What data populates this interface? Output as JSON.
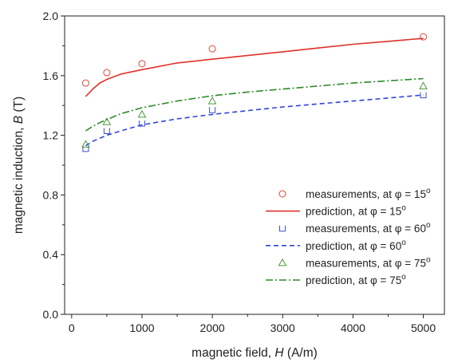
{
  "chart_data": {
    "type": "line",
    "title": "",
    "xlabel_prefix": "magnetic field, ",
    "xlabel_var": "H",
    "xlabel_suffix": " (A/m)",
    "ylabel_prefix": "magnetic induction, ",
    "ylabel_var": "B",
    "ylabel_suffix": " (T)",
    "xlim": [
      -100,
      5300
    ],
    "ylim": [
      0.0,
      2.0
    ],
    "x_ticks": [
      0,
      1000,
      2000,
      3000,
      4000,
      5000
    ],
    "x_tick_labels": [
      "0",
      "1000",
      "2000",
      "3000",
      "4000",
      "5000"
    ],
    "y_ticks": [
      0.0,
      0.4,
      0.8,
      1.2,
      1.6,
      2.0
    ],
    "y_tick_labels": [
      "0.0",
      "0.4",
      "0.8",
      "1.2",
      "1.6",
      "2.0"
    ],
    "grid": false,
    "legend_position": "lower-right",
    "series": [
      {
        "name": "measurements, at φ = 15",
        "name_sup": "o",
        "kind": "scatter",
        "marker": "circle",
        "color": "#e0443a",
        "x": [
          200,
          500,
          1000,
          2000,
          5000
        ],
        "y": [
          1.55,
          1.62,
          1.68,
          1.78,
          1.86
        ]
      },
      {
        "name": "prediction, at φ = 15",
        "name_sup": "o",
        "kind": "line",
        "dash": "solid",
        "color": "#e0302a",
        "x": [
          200,
          300,
          400,
          500,
          700,
          1000,
          1500,
          2000,
          2500,
          3000,
          3500,
          4000,
          4500,
          5000
        ],
        "y": [
          1.46,
          1.51,
          1.55,
          1.575,
          1.61,
          1.64,
          1.685,
          1.71,
          1.735,
          1.76,
          1.785,
          1.81,
          1.83,
          1.85
        ]
      },
      {
        "name": "measurements, at φ = 60",
        "name_sup": "o",
        "kind": "scatter",
        "marker": "square",
        "color": "#3a4fd0",
        "x": [
          200,
          500,
          1000,
          2000,
          5000
        ],
        "y": [
          1.11,
          1.23,
          1.28,
          1.37,
          1.47
        ]
      },
      {
        "name": "prediction, at φ = 60",
        "name_sup": "o",
        "kind": "line",
        "dash": "dashed",
        "color": "#2f45d8",
        "x": [
          200,
          300,
          400,
          500,
          700,
          1000,
          1500,
          2000,
          2500,
          3000,
          3500,
          4000,
          4500,
          5000
        ],
        "y": [
          1.13,
          1.16,
          1.18,
          1.2,
          1.23,
          1.27,
          1.31,
          1.34,
          1.365,
          1.39,
          1.41,
          1.43,
          1.45,
          1.47
        ]
      },
      {
        "name": "measurements, at φ = 75",
        "name_sup": "o",
        "kind": "scatter",
        "marker": "triangle",
        "color": "#4a9a3c",
        "x": [
          200,
          500,
          1000,
          2000,
          5000
        ],
        "y": [
          1.14,
          1.29,
          1.34,
          1.43,
          1.53
        ]
      },
      {
        "name": "prediction, at φ = 75",
        "name_sup": "o",
        "kind": "line",
        "dash": "dashdot",
        "color": "#2e8a2a",
        "x": [
          200,
          300,
          400,
          500,
          700,
          1000,
          1500,
          2000,
          2500,
          3000,
          3500,
          4000,
          4500,
          5000
        ],
        "y": [
          1.23,
          1.26,
          1.285,
          1.305,
          1.345,
          1.385,
          1.43,
          1.465,
          1.49,
          1.51,
          1.53,
          1.55,
          1.565,
          1.58
        ]
      }
    ]
  }
}
